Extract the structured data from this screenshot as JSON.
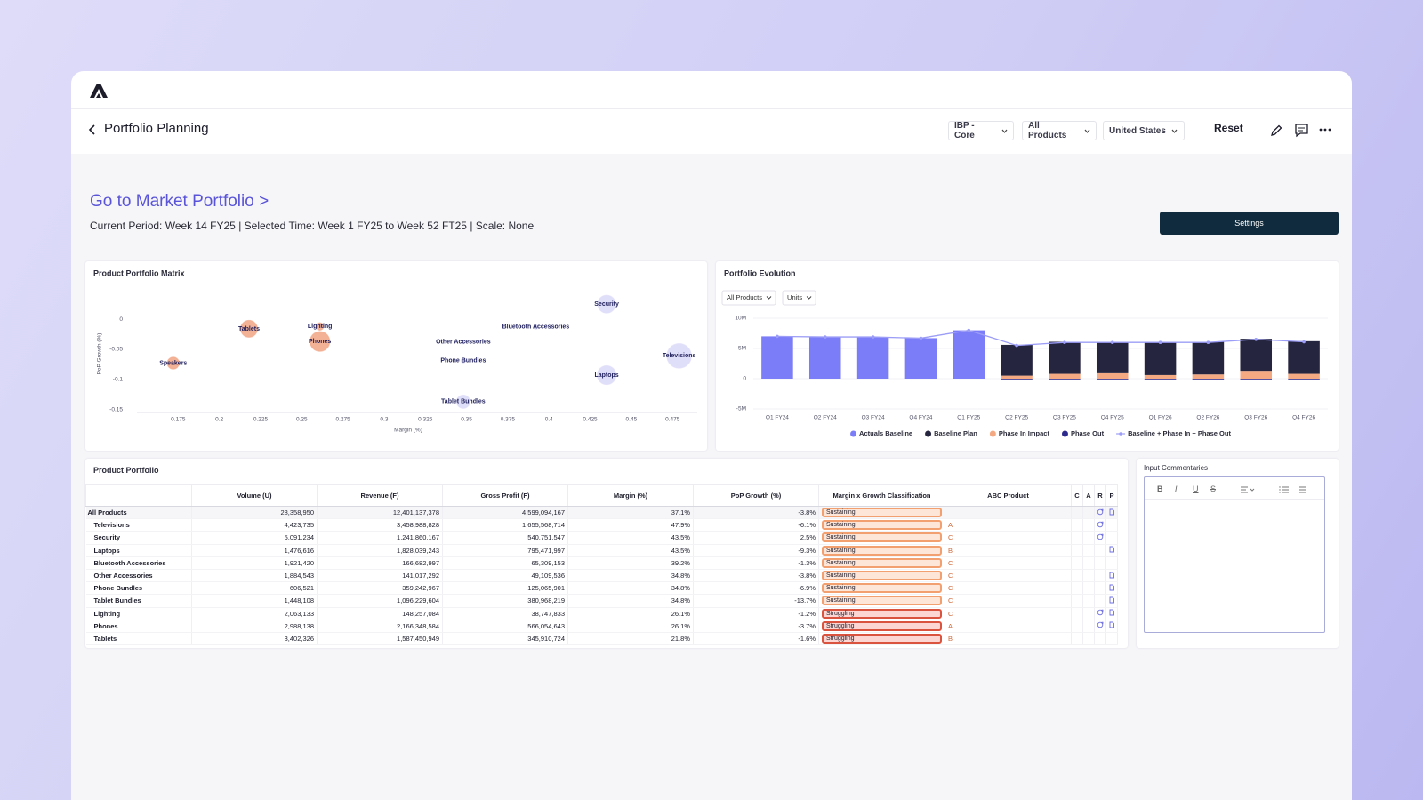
{
  "header": {
    "title": "Portfolio Planning",
    "filters": [
      "IBP - Core",
      "All Products",
      "United States"
    ],
    "reset": "Reset"
  },
  "section": {
    "title": "Go to Market Portfolio >",
    "subtitle": "Current Period: Week 14 FY25 | Selected Time: Week 1 FY25 to Week 52 FT25 | Scale: None",
    "settings": "Settings"
  },
  "chart_data": [
    {
      "type": "scatter",
      "title": "Product Portfolio Matrix",
      "x_label": "Margin (%)",
      "y_label": "PoP Growth (%)",
      "labels": [
        "Security",
        "Bluetooth Accessories",
        "Tablets",
        "Lighting",
        "Phones",
        "Other Accessories",
        "Televisions",
        "Phone Bundles",
        "Speakers",
        "Laptops",
        "Tablet Bundles"
      ],
      "x": [
        0.435,
        0.392,
        0.218,
        0.261,
        0.261,
        0.348,
        0.479,
        0.348,
        0.172,
        0.435,
        0.348
      ],
      "y": [
        0.025,
        -0.013,
        -0.016,
        -0.012,
        -0.037,
        -0.038,
        -0.061,
        -0.069,
        -0.073,
        -0.093,
        -0.137
      ],
      "sizes": [
        45,
        3,
        40,
        8,
        55,
        2,
        85,
        3,
        20,
        50,
        25
      ],
      "colors": [
        "#dddcf8",
        "#dddcf8",
        "#f2a88a",
        "#f2a88a",
        "#f2a88a",
        "#dddcf8",
        "#dddcf8",
        "#dddcf8",
        "#f2a88a",
        "#dddcf8",
        "#dddcf8"
      ],
      "label_color": "#1f1f5c",
      "xlim": [
        0.15,
        0.49
      ],
      "ylim": [
        -0.155,
        0.04
      ],
      "xticks": [
        0.175,
        0.2,
        0.225,
        0.25,
        0.275,
        0.3,
        0.325,
        0.35,
        0.375,
        0.4,
        0.425,
        0.45,
        0.475
      ],
      "yticks": [
        0,
        -0.05,
        -0.1,
        -0.15
      ],
      "grid": false
    },
    {
      "type": "bar",
      "title": "Portfolio Evolution",
      "controls": [
        "All Products",
        "Units"
      ],
      "categories": [
        "Q1 FY24",
        "Q2 FY24",
        "Q3 FY24",
        "Q4 FY24",
        "Q1 FY25",
        "Q2 FY25",
        "Q3 FY25",
        "Q4 FY25",
        "Q1 FY26",
        "Q2 FY26",
        "Q3 FY26",
        "Q4 FY26"
      ],
      "series": [
        {
          "name": "Actuals Baseline",
          "type": "bar",
          "color": "#7b7cf8",
          "values": [
            7000000,
            6900000,
            6900000,
            6700000,
            8000000,
            null,
            null,
            null,
            null,
            null,
            null,
            null
          ]
        },
        {
          "name": "Baseline Plan",
          "type": "bar",
          "color": "#25253f",
          "values": [
            null,
            null,
            null,
            null,
            null,
            5100000,
            5300000,
            5200000,
            5500000,
            5400000,
            5300000,
            5400000
          ]
        },
        {
          "name": "Phase In Impact",
          "type": "bar",
          "color": "#f4a983",
          "values": [
            null,
            null,
            null,
            null,
            null,
            500000,
            800000,
            900000,
            600000,
            700000,
            1300000,
            800000
          ]
        },
        {
          "name": "Phase Out",
          "type": "bar",
          "color": "#2c2a8c",
          "values": [
            null,
            null,
            null,
            null,
            null,
            -100000,
            -100000,
            -100000,
            -100000,
            -100000,
            -100000,
            -100000
          ]
        },
        {
          "name": "Baseline + Phase In + Phase Out",
          "type": "line",
          "color": "#9c9df6",
          "values": [
            7000000,
            6900000,
            6900000,
            6700000,
            8000000,
            5500000,
            6000000,
            6000000,
            6000000,
            6000000,
            6500000,
            6100000
          ]
        }
      ],
      "ylim": [
        -5000000,
        10000000
      ],
      "yticks": [
        {
          "value": -5000000,
          "label": "-5M"
        },
        0,
        {
          "value": 5000000,
          "label": "5M"
        },
        {
          "value": 10000000,
          "label": "10M"
        }
      ],
      "grid": true,
      "legend": "bottom"
    }
  ],
  "table": {
    "title": "Product Portfolio",
    "columns": [
      "Volume (U)",
      "Revenue (F)",
      "Gross Profit (F)",
      "Margin (%)",
      "PoP Growth (%)",
      "Margin x Growth Classification",
      "ABC Product",
      "C",
      "A",
      "R",
      "P"
    ],
    "classification_colors": {
      "Sustaining": {
        "fill": "#fde5d8",
        "stroke": "#f3a070"
      },
      "Struggling": {
        "fill": "#fcd6d2",
        "stroke": "#d9533f"
      }
    },
    "rows": [
      {
        "name": "All Products",
        "volume": "28,358,950",
        "revenue": "12,401,137,378",
        "gross_profit": "4,599,094,167",
        "margin": "37.1%",
        "growth": "-3.8%",
        "classification": "Sustaining"
      },
      {
        "name": "Televisions",
        "volume": "4,423,735",
        "revenue": "3,458,988,828",
        "gross_profit": "1,655,568,714",
        "margin": "47.9%",
        "growth": "-6.1%",
        "classification": "Sustaining",
        "abc": "A"
      },
      {
        "name": "Security",
        "volume": "5,091,234",
        "revenue": "1,241,860,167",
        "gross_profit": "540,751,547",
        "margin": "43.5%",
        "growth": "2.5%",
        "classification": "Sustaining",
        "abc": "C"
      },
      {
        "name": "Laptops",
        "volume": "1,476,616",
        "revenue": "1,828,039,243",
        "gross_profit": "795,471,997",
        "margin": "43.5%",
        "growth": "-9.3%",
        "classification": "Sustaining",
        "abc": "B"
      },
      {
        "name": "Bluetooth Accessories",
        "volume": "1,921,420",
        "revenue": "166,682,997",
        "gross_profit": "65,309,153",
        "margin": "39.2%",
        "growth": "-1.3%",
        "classification": "Sustaining",
        "abc": "C"
      },
      {
        "name": "Other Accessories",
        "volume": "1,884,543",
        "revenue": "141,017,292",
        "gross_profit": "49,109,536",
        "margin": "34.8%",
        "growth": "-3.8%",
        "classification": "Sustaining",
        "abc": "C"
      },
      {
        "name": "Phone Bundles",
        "volume": "606,521",
        "revenue": "359,242,967",
        "gross_profit": "125,065,901",
        "margin": "34.8%",
        "growth": "-6.9%",
        "classification": "Sustaining",
        "abc": "C"
      },
      {
        "name": "Tablet Bundles",
        "volume": "1,448,108",
        "revenue": "1,096,229,604",
        "gross_profit": "380,968,219",
        "margin": "34.8%",
        "growth": "-13.7%",
        "classification": "Sustaining",
        "abc": "C"
      },
      {
        "name": "Lighting",
        "volume": "2,063,133",
        "revenue": "148,257,084",
        "gross_profit": "38,747,833",
        "margin": "26.1%",
        "growth": "-1.2%",
        "classification": "Struggling",
        "abc": "C"
      },
      {
        "name": "Phones",
        "volume": "2,988,138",
        "revenue": "2,166,348,584",
        "gross_profit": "566,054,643",
        "margin": "26.1%",
        "growth": "-3.7%",
        "classification": "Struggling",
        "abc": "A"
      },
      {
        "name": "Tablets",
        "volume": "3,402,326",
        "revenue": "1,587,450,949",
        "gross_profit": "345,910,724",
        "margin": "21.8%",
        "growth": "-1.6%",
        "classification": "Struggling",
        "abc": "B"
      }
    ]
  },
  "commentary": {
    "title": "Input Commentaries",
    "toolbar": [
      "B",
      "I",
      "U",
      "S"
    ]
  }
}
